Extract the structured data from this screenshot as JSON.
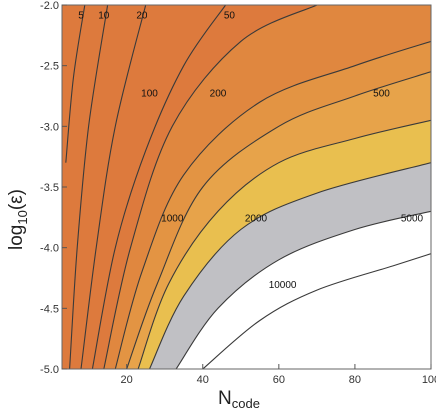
{
  "chart_data": {
    "type": "contour",
    "x_axis": {
      "label": "N",
      "label_subscript": "code",
      "range": [
        3,
        100
      ],
      "ticks": [
        20,
        40,
        60,
        80,
        100
      ],
      "tick_labels": [
        "20",
        "40",
        "60",
        "80",
        "100"
      ]
    },
    "y_axis": {
      "label": "log",
      "label_subscript": "10",
      "label_suffix": "(ε)",
      "range": [
        -5.0,
        -2.0
      ],
      "ticks": [
        -2.0,
        -2.5,
        -3.0,
        -3.5,
        -4.0,
        -4.5,
        -5.0
      ],
      "tick_labels": [
        "-2.0",
        "-2.5",
        "-3.0",
        "-3.5",
        "-4.0",
        "-4.5",
        "-5.0"
      ]
    },
    "contours": [
      {
        "level": 5,
        "label": "5",
        "label_at": [
          8,
          -2.08
        ],
        "points": [
          [
            4,
            -3.3
          ],
          [
            6,
            -2.6
          ],
          [
            9,
            -2.0
          ]
        ]
      },
      {
        "level": 10,
        "label": "10",
        "label_at": [
          14,
          -2.08
        ],
        "points": [
          [
            5,
            -5.0
          ],
          [
            7,
            -4.0
          ],
          [
            10,
            -3.0
          ],
          [
            15,
            -2.0
          ]
        ]
      },
      {
        "level": 20,
        "label": "20",
        "label_at": [
          24,
          -2.08
        ],
        "points": [
          [
            8,
            -5.0
          ],
          [
            12,
            -4.0
          ],
          [
            17,
            -3.0
          ],
          [
            25,
            -2.0
          ]
        ]
      },
      {
        "level": 50,
        "label": "50",
        "label_at": [
          47,
          -2.08
        ],
        "points": [
          [
            11,
            -5.0
          ],
          [
            17,
            -4.0
          ],
          [
            25,
            -3.2
          ],
          [
            35,
            -2.5
          ],
          [
            46,
            -2.0
          ]
        ]
      },
      {
        "level": 100,
        "label": "100",
        "label_at": [
          26,
          -2.72
        ],
        "points": [
          [
            14,
            -5.0
          ],
          [
            21,
            -4.0
          ],
          [
            32,
            -3.0
          ],
          [
            50,
            -2.3
          ],
          [
            70,
            -2.0
          ]
        ]
      },
      {
        "level": 200,
        "label": "200",
        "label_at": [
          44,
          -2.72
        ],
        "points": [
          [
            17,
            -5.0
          ],
          [
            24,
            -4.2
          ],
          [
            35,
            -3.4
          ],
          [
            55,
            -2.8
          ],
          [
            80,
            -2.5
          ],
          [
            100,
            -2.3
          ]
        ]
      },
      {
        "level": 500,
        "label": "500",
        "label_at": [
          87,
          -2.72
        ],
        "points": [
          [
            20,
            -5.0
          ],
          [
            28,
            -4.3
          ],
          [
            40,
            -3.5
          ],
          [
            60,
            -3.0
          ],
          [
            80,
            -2.75
          ],
          [
            100,
            -2.55
          ]
        ]
      },
      {
        "level": 1000,
        "label": "1000",
        "label_at": [
          32,
          -3.75
        ],
        "points": [
          [
            23,
            -5.0
          ],
          [
            31,
            -4.3
          ],
          [
            44,
            -3.7
          ],
          [
            60,
            -3.3
          ],
          [
            80,
            -3.1
          ],
          [
            100,
            -2.95
          ]
        ]
      },
      {
        "level": 2000,
        "label": "2000",
        "label_at": [
          54,
          -3.75
        ],
        "points": [
          [
            26,
            -5.0
          ],
          [
            35,
            -4.4
          ],
          [
            50,
            -3.85
          ],
          [
            70,
            -3.55
          ],
          [
            100,
            -3.3
          ]
        ]
      },
      {
        "level": 5000,
        "label": "5000",
        "label_at": [
          95,
          -3.75
        ],
        "points": [
          [
            33,
            -5.0
          ],
          [
            44,
            -4.5
          ],
          [
            60,
            -4.1
          ],
          [
            80,
            -3.85
          ],
          [
            100,
            -3.7
          ]
        ]
      },
      {
        "level": 10000,
        "label": "10000",
        "label_at": [
          61,
          -4.3
        ],
        "points": [
          [
            40,
            -5.0
          ],
          [
            55,
            -4.6
          ],
          [
            70,
            -4.35
          ],
          [
            90,
            -4.15
          ],
          [
            100,
            -4.05
          ]
        ]
      }
    ],
    "region_colors": {
      "below_100": "#dd7a3d",
      "100_to_200": "#e0873f",
      "200_to_500": "#e39443",
      "500_to_1000": "#e7a34a",
      "1000_to_2000": "#e9bf4f",
      "2000_to_5000": "#c0c0c4",
      "above_5000": "#ffffff"
    },
    "line_color": "#3a3a3a"
  }
}
